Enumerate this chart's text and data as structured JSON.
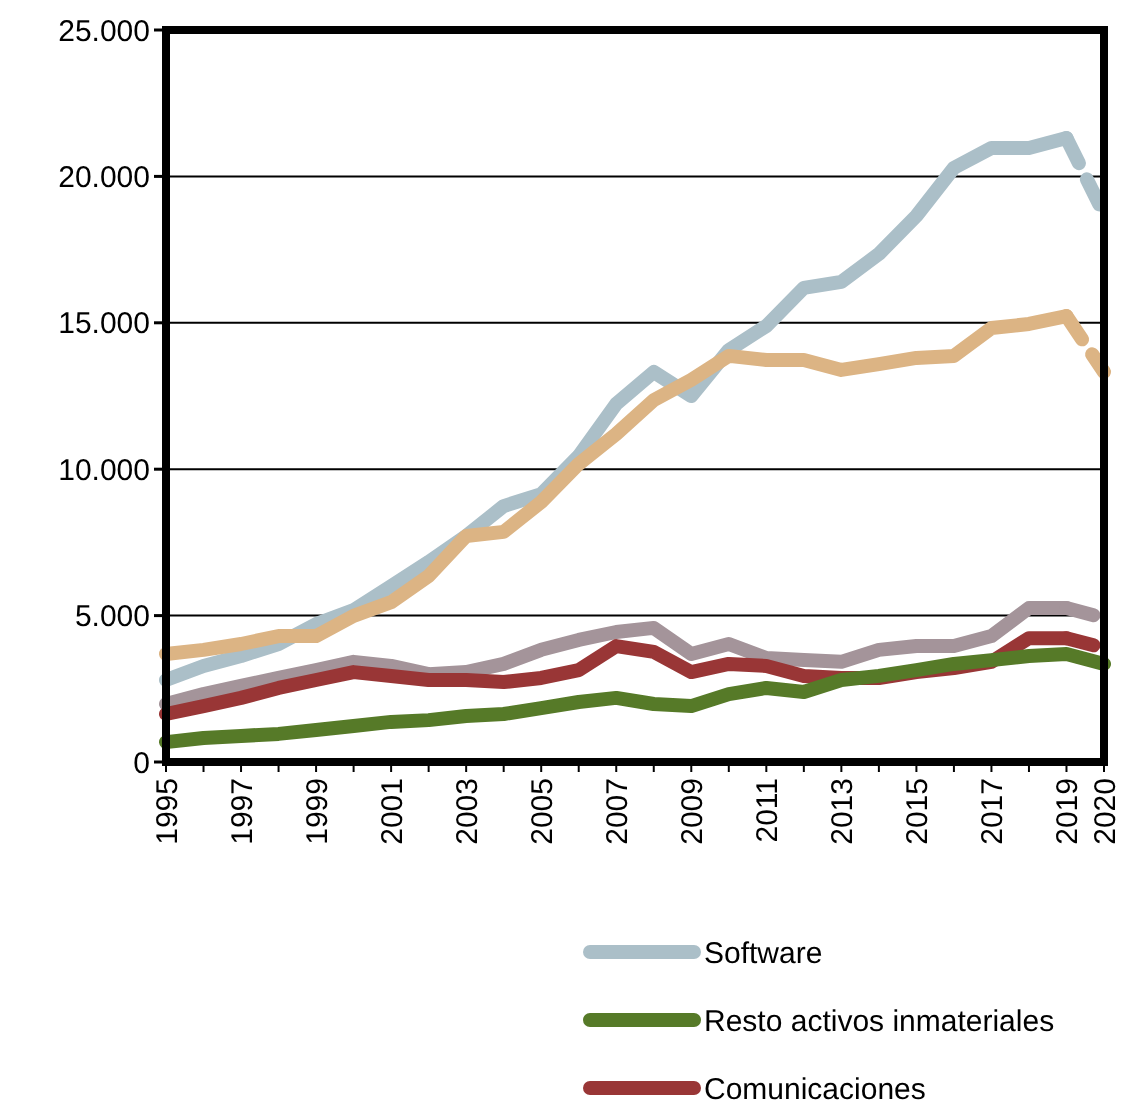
{
  "chart_data": {
    "type": "line",
    "x": [
      1995,
      1996,
      1997,
      1998,
      1999,
      2000,
      2001,
      2002,
      2003,
      2004,
      2005,
      2006,
      2007,
      2008,
      2009,
      2010,
      2011,
      2012,
      2013,
      2014,
      2015,
      2016,
      2017,
      2018,
      2019
    ],
    "xlim": [
      1995,
      2020
    ],
    "xticks": [
      1995,
      {
        "value": 1996,
        "label": null
      },
      1997,
      {
        "value": 1998,
        "label": null
      },
      1999,
      {
        "value": 2000,
        "label": null
      },
      2001,
      {
        "value": 2002,
        "label": null
      },
      2003,
      {
        "value": 2004,
        "label": null
      },
      2005,
      {
        "value": 2006,
        "label": null
      },
      2007,
      {
        "value": 2008,
        "label": null
      },
      2009,
      {
        "value": 2010,
        "label": null
      },
      2011,
      {
        "value": 2012,
        "label": null
      },
      2013,
      {
        "value": 2014,
        "label": null
      },
      2015,
      {
        "value": 2016,
        "label": null
      },
      2017,
      {
        "value": 2018,
        "label": null
      },
      2019,
      2020
    ],
    "ylim": [
      0,
      25000
    ],
    "yticks": [
      0,
      {
        "value": 5000,
        "label": "5.000"
      },
      {
        "value": 10000,
        "label": "10.000"
      },
      {
        "value": 15000,
        "label": "15.000"
      },
      {
        "value": 20000,
        "label": "20.000"
      },
      {
        "value": 25000,
        "label": "25.000"
      }
    ],
    "grid": "y",
    "legend": "bottom",
    "marker": "none",
    "line_style": "solid",
    "series": [
      {
        "name": "Software",
        "color": "#abbfc8",
        "values": [
          2800,
          3280,
          3620,
          4030,
          4710,
          5190,
          6010,
          6830,
          7720,
          8740,
          9150,
          10450,
          12230,
          13320,
          12500,
          14070,
          14890,
          16190,
          16400,
          17350,
          18650,
          20290,
          20970,
          20970,
          21310
        ]
      },
      {
        "color": "#dcb484",
        "values": [
          3690,
          3830,
          4030,
          4300,
          4300,
          4990,
          5460,
          6350,
          7720,
          7860,
          8880,
          10180,
          11200,
          12360,
          13050,
          13870,
          13730,
          13730,
          13390,
          13590,
          13800,
          13870,
          14820,
          14960,
          15230
        ]
      },
      {
        "color": "#a4949a",
        "values": [
          1980,
          2320,
          2600,
          2870,
          3140,
          3420,
          3280,
          3000,
          3070,
          3350,
          3830,
          4170,
          4440,
          4580,
          3690,
          4030,
          3550,
          3480,
          3420,
          3830,
          3960,
          3960,
          4300,
          5260,
          5260
        ]
      },
      {
        "name": "Comunicaciones",
        "color": "#993636",
        "values": [
          1640,
          1910,
          2190,
          2530,
          2800,
          3070,
          2940,
          2800,
          2800,
          2730,
          2870,
          3140,
          3960,
          3760,
          3070,
          3350,
          3280,
          2940,
          2870,
          2870,
          3070,
          3210,
          3420,
          4230,
          4230
        ]
      },
      {
        "name": "Resto activos inmateriales",
        "color": "#567a28",
        "x": [
          1995,
          1996,
          1997,
          1998,
          1999,
          2000,
          2001,
          2002,
          2003,
          2004,
          2005,
          2006,
          2007,
          2008,
          2009,
          2010,
          2011,
          2012,
          2013,
          2014,
          2015,
          2016,
          2017,
          2018,
          2019,
          2020
        ],
        "values": [
          680,
          820,
          890,
          960,
          1090,
          1230,
          1370,
          1430,
          1570,
          1640,
          1840,
          2050,
          2190,
          1980,
          1910,
          2320,
          2530,
          2390,
          2800,
          2940,
          3140,
          3350,
          3480,
          3620,
          3690,
          3350
        ]
      },
      {
        "color": "#abbfc8",
        "x": [
          2019,
          2020
        ],
        "values": [
          21310,
          18720
        ],
        "line_style": "dashed"
      },
      {
        "color": "#dcb484",
        "x": [
          2019,
          2020
        ],
        "values": [
          15230,
          13320
        ],
        "line_style": "dashed"
      },
      {
        "color": "#a4949a",
        "x": [
          2019,
          2020
        ],
        "values": [
          5260,
          4920
        ],
        "line_style": "dashed"
      },
      {
        "color": "#993636",
        "x": [
          2019,
          2020
        ],
        "values": [
          4230,
          3890
        ],
        "line_style": "dashed"
      }
    ]
  }
}
